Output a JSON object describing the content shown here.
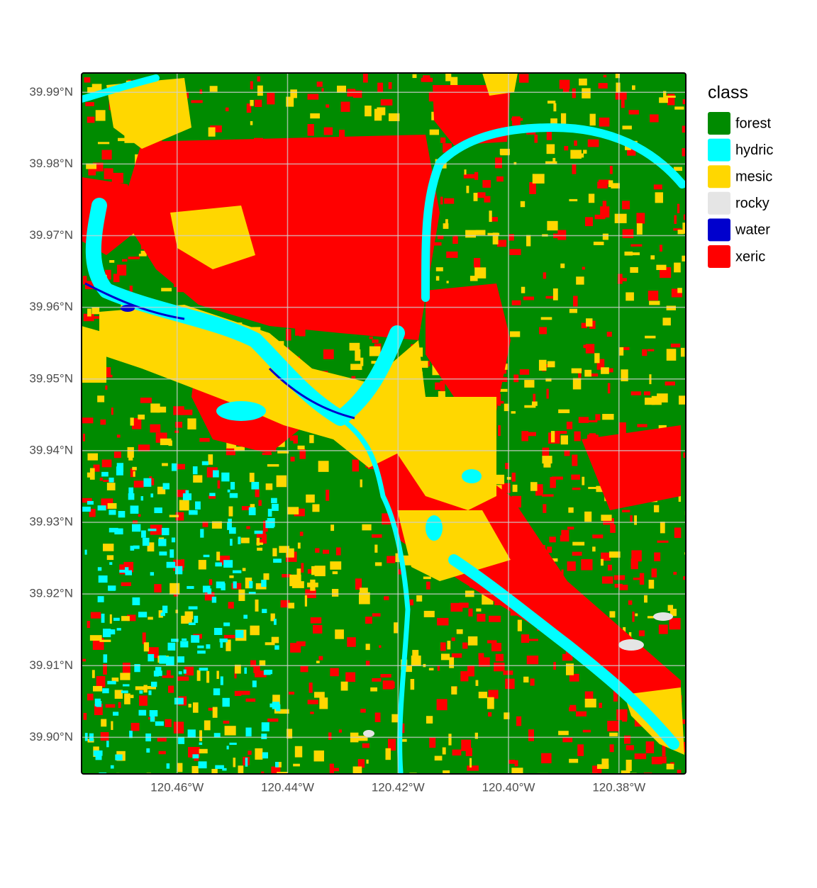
{
  "chart_data": {
    "type": "map",
    "legend_title": "class",
    "classes": [
      {
        "name": "forest",
        "color": "#008b00"
      },
      {
        "name": "hydric",
        "color": "#00ffff"
      },
      {
        "name": "mesic",
        "color": "#ffd700"
      },
      {
        "name": "rocky",
        "color": "#e5e5e5"
      },
      {
        "name": "water",
        "color": "#0000cd"
      },
      {
        "name": "xeric",
        "color": "#ff0000"
      }
    ],
    "xlim": [
      -120.4773,
      -120.3679
    ],
    "ylim": [
      39.8949,
      39.9927
    ],
    "xticks": [
      {
        "value": -120.46,
        "label": "120.46°W"
      },
      {
        "value": -120.44,
        "label": "120.44°W"
      },
      {
        "value": -120.42,
        "label": "120.42°W"
      },
      {
        "value": -120.4,
        "label": "120.40°W"
      },
      {
        "value": -120.38,
        "label": "120.38°W"
      }
    ],
    "yticks": [
      {
        "value": 39.9,
        "label": "39.90°N"
      },
      {
        "value": 39.91,
        "label": "39.91°N"
      },
      {
        "value": 39.92,
        "label": "39.92°N"
      },
      {
        "value": 39.93,
        "label": "39.93°N"
      },
      {
        "value": 39.94,
        "label": "39.94°N"
      },
      {
        "value": 39.95,
        "label": "39.95°N"
      },
      {
        "value": 39.96,
        "label": "39.96°N"
      },
      {
        "value": 39.97,
        "label": "39.97°N"
      },
      {
        "value": 39.98,
        "label": "39.98°N"
      },
      {
        "value": 39.99,
        "label": "39.99°N"
      }
    ],
    "grid": true
  }
}
